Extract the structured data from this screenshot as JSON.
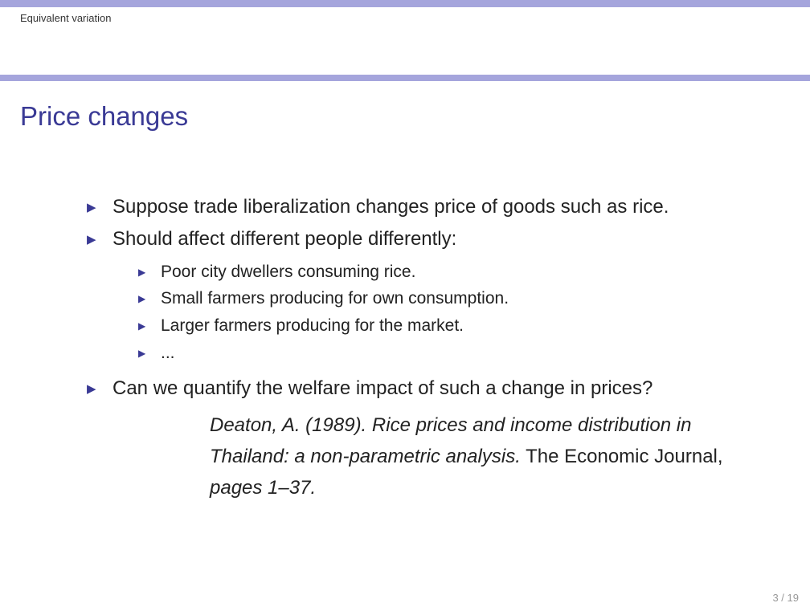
{
  "header": {
    "section": "Equivalent variation"
  },
  "slide": {
    "title": "Price changes",
    "bullets": [
      "Suppose trade liberalization changes price of goods such as rice.",
      "Should affect different people differently:",
      "Can we quantify the welfare impact of such a change in prices?"
    ],
    "sub_bullets": [
      "Poor city dwellers consuming rice.",
      "Small farmers producing for own consumption.",
      "Larger farmers producing for the market.",
      "..."
    ],
    "reference": {
      "authors_year": "Deaton, A. (1989).",
      "title": "Rice prices and income distribution in Thailand: a non-parametric analysis.",
      "journal": "The Economic Journal",
      "pages": "pages 1–37."
    }
  },
  "footer": {
    "page": "3 / 19"
  },
  "colors": {
    "accent": "#3a3a95",
    "bar": "#a5a5dc"
  },
  "icons": {
    "bullet": "triangle-right-icon"
  }
}
